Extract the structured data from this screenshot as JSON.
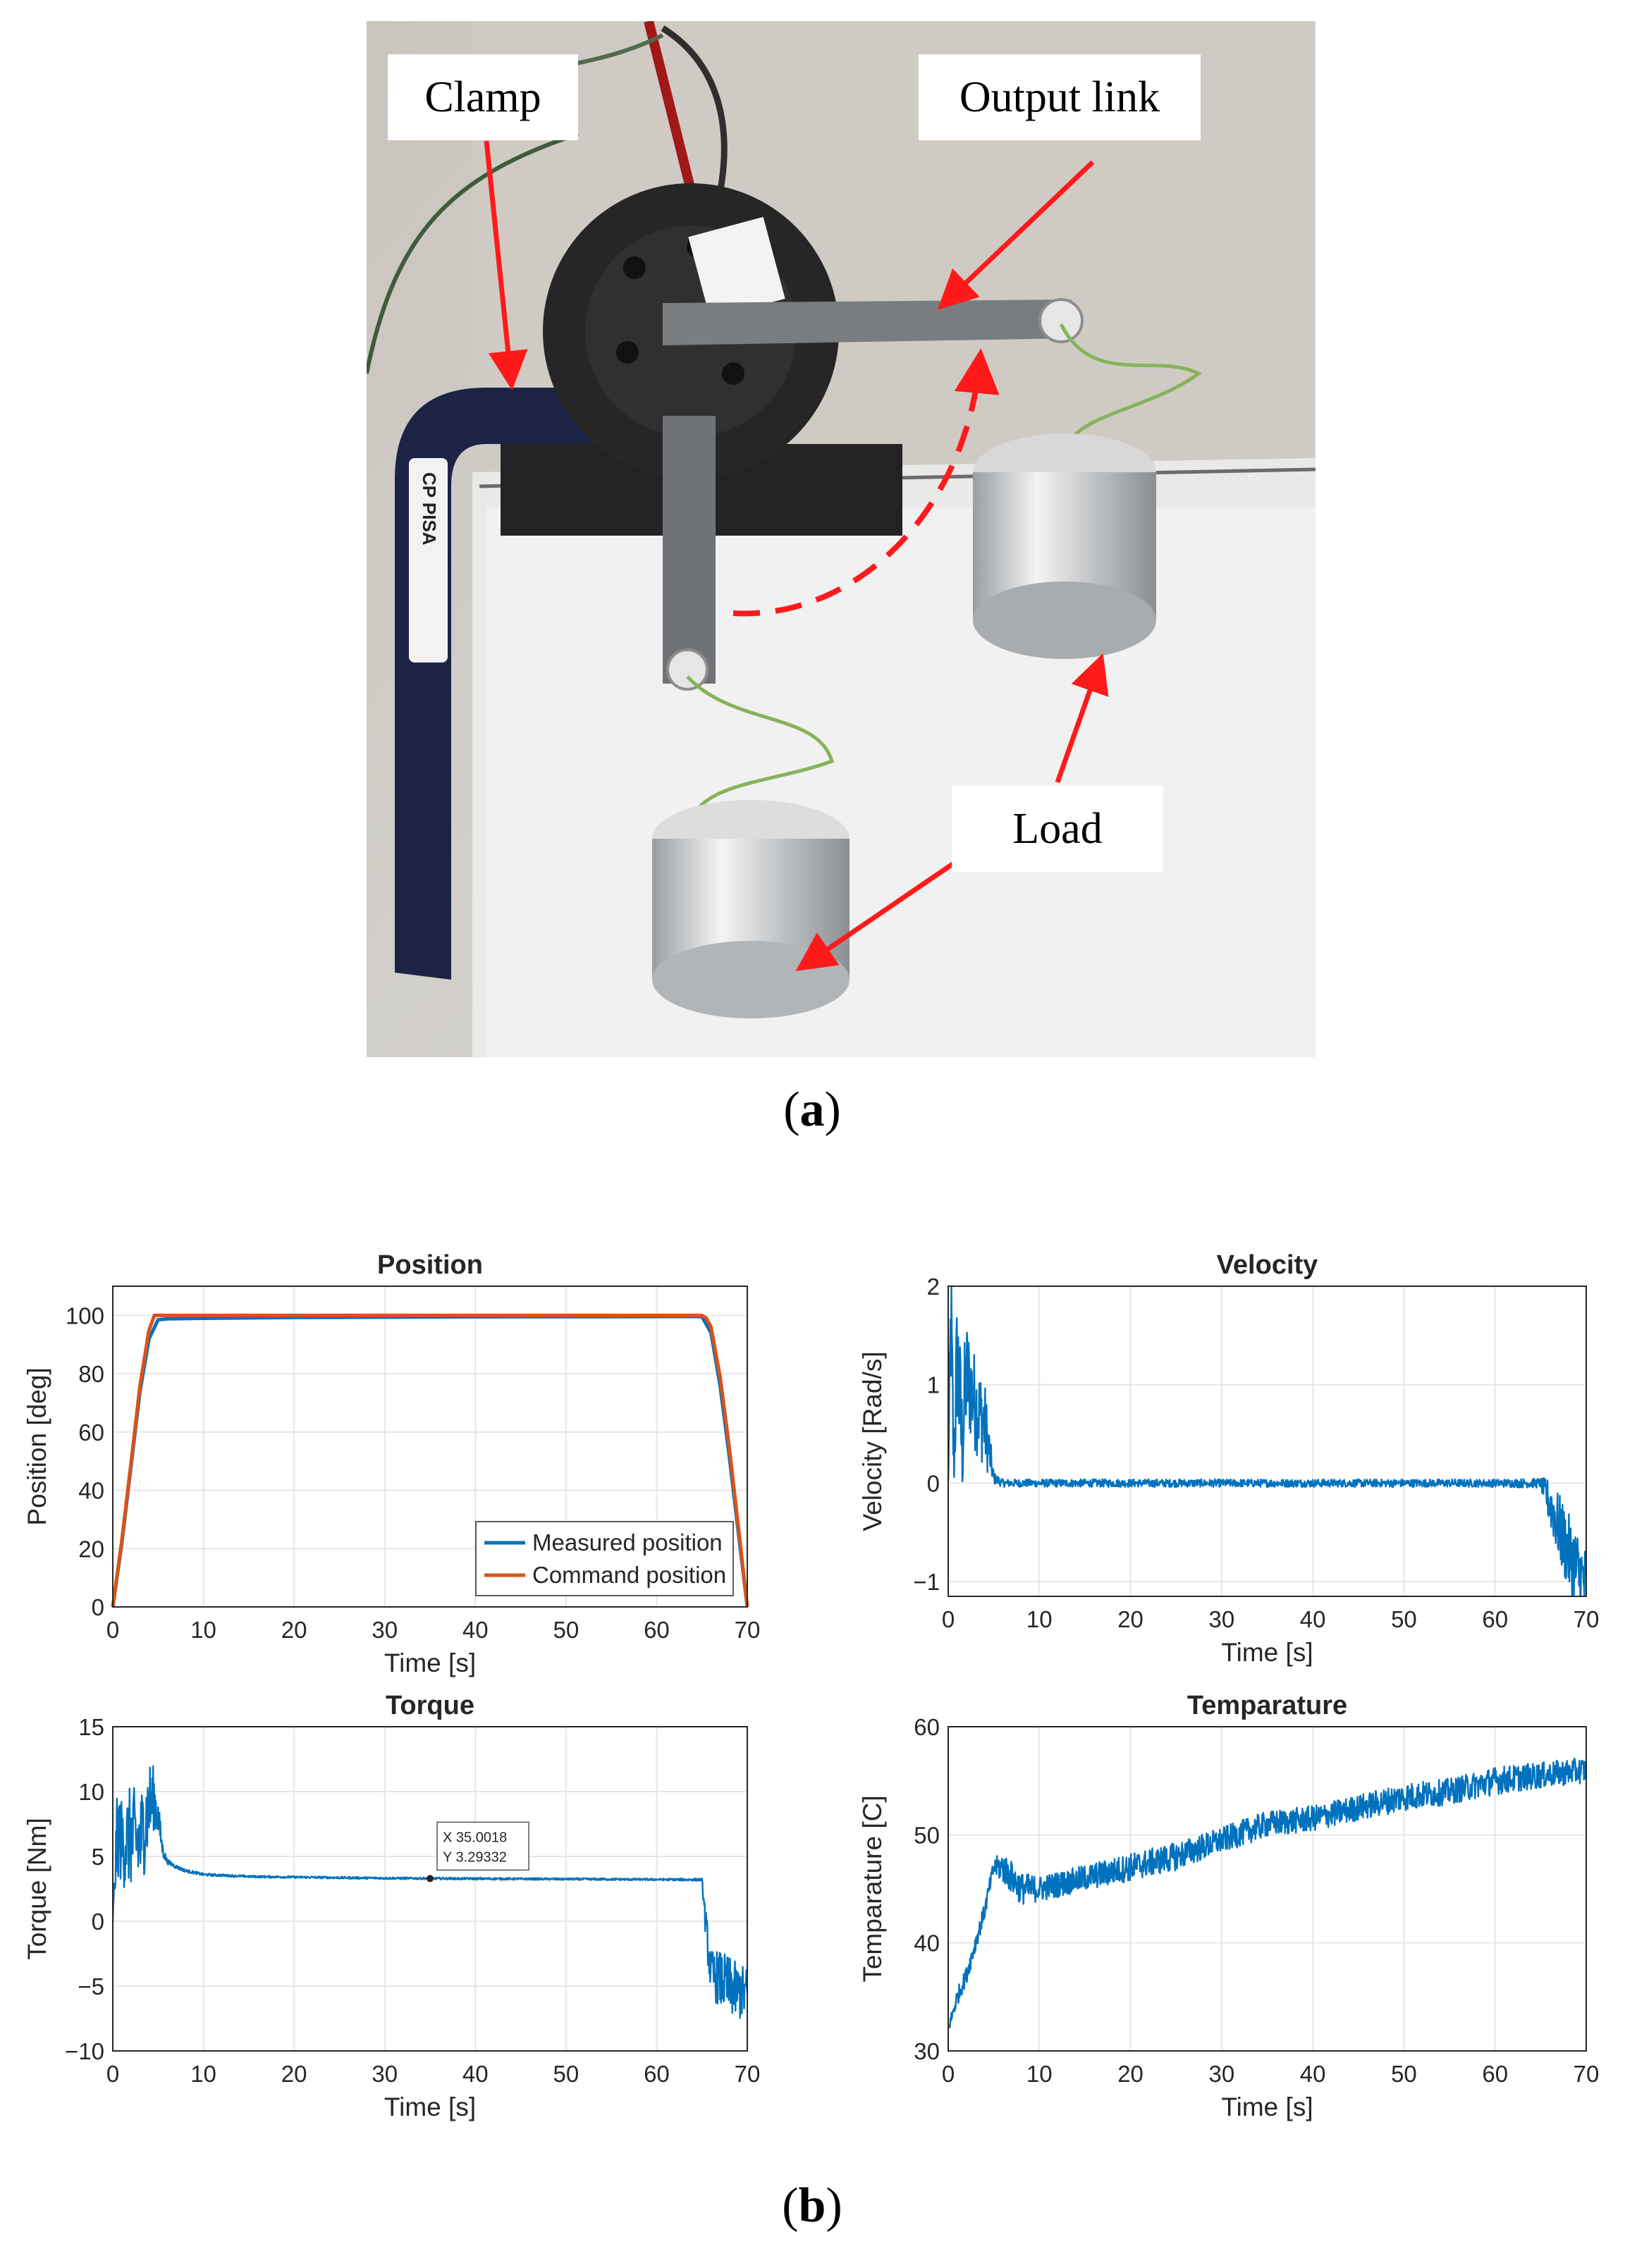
{
  "figure": {
    "caption_a": "a",
    "caption_b": "b",
    "callouts": {
      "clamp": "Clamp",
      "output_link": "Output link",
      "load": "Load"
    },
    "clamp_sticker": "CP PISA",
    "colors": {
      "annotation_arrow": "#ff1a1a",
      "series_blue": "#0072BD",
      "series_orange": "#D95319"
    }
  },
  "chart_data": [
    {
      "type": "line",
      "title": "Position",
      "xlabel": "Time [s]",
      "ylabel": "Position [deg]",
      "xlim": [
        0,
        70
      ],
      "ylim": [
        0,
        110
      ],
      "xticks": [
        0,
        10,
        20,
        30,
        40,
        50,
        60,
        70
      ],
      "yticks": [
        0,
        20,
        40,
        60,
        80,
        100
      ],
      "grid": true,
      "legend": "bottom-right",
      "series": [
        {
          "name": "Measured position",
          "color": "#0072BD",
          "x": [
            0,
            1,
            2,
            3,
            4,
            5,
            6,
            10,
            20,
            40,
            60,
            65,
            66,
            67,
            68,
            69,
            70
          ],
          "y": [
            0,
            22,
            48,
            74,
            92,
            98.5,
            98.8,
            99,
            99.3,
            99.5,
            99.6,
            99.6,
            94,
            76,
            52,
            26,
            0
          ]
        },
        {
          "name": "Command position",
          "color": "#D95319",
          "x": [
            0,
            1,
            2,
            3,
            4,
            4.6,
            5,
            10,
            20,
            40,
            60,
            65,
            65.5,
            66,
            67,
            68,
            69,
            70
          ],
          "y": [
            0,
            23,
            49,
            76,
            95,
            100,
            100,
            100,
            100,
            100,
            100,
            100,
            99,
            96,
            79,
            55,
            28,
            0
          ]
        }
      ]
    },
    {
      "type": "line",
      "title": "Velocity",
      "xlabel": "Time [s]",
      "ylabel": "Velocity [Rad/s]",
      "xlim": [
        0,
        70
      ],
      "ylim": [
        -1.15,
        2
      ],
      "xticks": [
        0,
        10,
        20,
        30,
        40,
        50,
        60,
        70
      ],
      "yticks": [
        -1,
        0,
        1,
        2
      ],
      "grid": true,
      "series": [
        {
          "name": "",
          "color": "#0072BD",
          "x": [
            0,
            0.3,
            0.6,
            1,
            1.5,
            2,
            3,
            4,
            5,
            6,
            10,
            20,
            30,
            40,
            50,
            60,
            65,
            66,
            67,
            68,
            69,
            70
          ],
          "y": [
            0,
            1.68,
            0.2,
            1.3,
            0.4,
            1.1,
            0.8,
            0.6,
            0.05,
            0,
            0,
            0,
            0,
            0,
            0,
            0,
            0,
            -0.2,
            -0.45,
            -0.7,
            -0.9,
            -1.05
          ],
          "noise": [
            0.05,
            0.9,
            0.4,
            0.8,
            0.7,
            0.6,
            0.5,
            0.45,
            0.06,
            0.04,
            0.04,
            0.04,
            0.04,
            0.04,
            0.04,
            0.04,
            0.05,
            0.25,
            0.35,
            0.4,
            0.45,
            0.4
          ]
        }
      ]
    },
    {
      "type": "line",
      "title": "Torque",
      "xlabel": "Time [s]",
      "ylabel": "Torque [Nm]",
      "xlim": [
        0,
        70
      ],
      "ylim": [
        -10,
        15
      ],
      "xticks": [
        0,
        10,
        20,
        30,
        40,
        50,
        60,
        70
      ],
      "yticks": [
        -10,
        -5,
        0,
        5,
        10,
        15
      ],
      "grid": true,
      "datatip": {
        "x": 35.0018,
        "y": 3.29332,
        "x_text": "X 35.0018",
        "y_text": "Y 3.29332"
      },
      "series": [
        {
          "name": "",
          "color": "#0072BD",
          "x": [
            0,
            0.5,
            1,
            2,
            3,
            4,
            4.5,
            5,
            5.5,
            6,
            7,
            8,
            10,
            15,
            20,
            30,
            40,
            50,
            60,
            65,
            65.5,
            66,
            67,
            68,
            69,
            70
          ],
          "y": [
            0,
            7,
            6,
            6.5,
            6,
            9,
            9.5,
            8,
            5.5,
            4.6,
            4.2,
            3.9,
            3.6,
            3.45,
            3.4,
            3.32,
            3.28,
            3.25,
            3.22,
            3.2,
            -1,
            -4,
            -4.5,
            -5,
            -5.5,
            -5.5
          ],
          "noise": [
            0.3,
            3.5,
            3.5,
            4,
            4,
            3.5,
            2.5,
            1.5,
            0.6,
            0.2,
            0.15,
            0.12,
            0.1,
            0.08,
            0.08,
            0.08,
            0.08,
            0.08,
            0.08,
            0.1,
            1.5,
            1.8,
            2.2,
            2.3,
            2.2,
            2
          ]
        }
      ]
    },
    {
      "type": "line",
      "title": "Temparature",
      "xlabel": "Time [s]",
      "ylabel": "Temparature [C]",
      "xlim": [
        0,
        70
      ],
      "ylim": [
        30,
        60
      ],
      "xticks": [
        0,
        10,
        20,
        30,
        40,
        50,
        60,
        70
      ],
      "yticks": [
        30,
        40,
        50,
        60
      ],
      "grid": true,
      "series": [
        {
          "name": "",
          "color": "#0072BD",
          "x": [
            0,
            1,
            2,
            3,
            4,
            5,
            6,
            7,
            8,
            10,
            15,
            20,
            25,
            30,
            35,
            40,
            45,
            50,
            55,
            60,
            65,
            70
          ],
          "y": [
            32,
            35,
            37,
            40,
            43,
            47,
            47,
            46,
            45,
            45,
            46,
            47,
            48,
            49.5,
            51,
            51.5,
            52.5,
            53.5,
            54,
            55,
            55.5,
            56
          ],
          "noise": [
            0.5,
            0.8,
            0.8,
            0.8,
            0.8,
            0.8,
            1.5,
            1.5,
            1.5,
            1.2,
            1.2,
            1.3,
            1.3,
            1.2,
            1.2,
            1.2,
            1.2,
            1.3,
            1.2,
            1.3,
            1.2,
            1.2
          ]
        }
      ]
    }
  ]
}
